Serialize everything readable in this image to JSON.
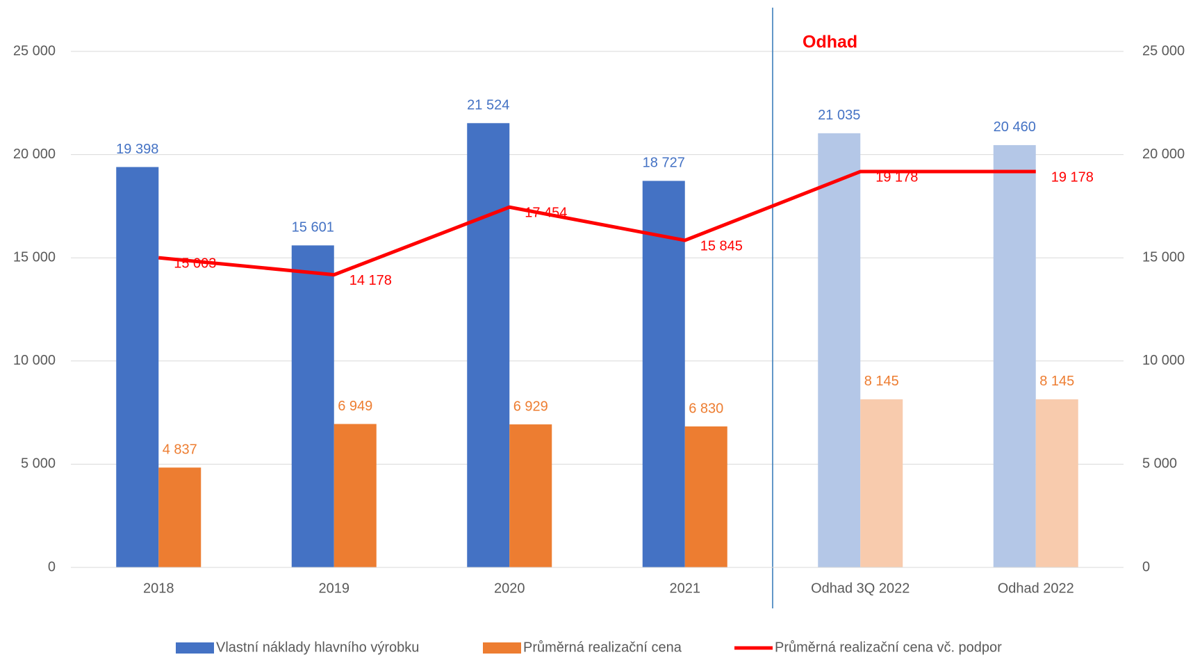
{
  "chart_data": {
    "type": "bar_line",
    "annotation": "Odhad",
    "categories": [
      "2018",
      "2019",
      "2020",
      "2021",
      "Odhad 3Q 2022",
      "Odhad 2022"
    ],
    "series": [
      {
        "name": "Vlastní náklady hlavního výrobku",
        "type": "bar",
        "color": "#4472c4",
        "colors": [
          "#4472c4",
          "#4472c4",
          "#4472c4",
          "#4472c4",
          "#b4c7e7",
          "#b4c7e7"
        ],
        "values": [
          19398,
          15601,
          21524,
          18727,
          21035,
          20460
        ],
        "value_labels": [
          "19 398",
          "15 601",
          "21 524",
          "18 727",
          "21 035",
          "20 460"
        ]
      },
      {
        "name": "Průměrná realizační cena",
        "type": "bar",
        "color": "#ed7d31",
        "colors": [
          "#ed7d31",
          "#ed7d31",
          "#ed7d31",
          "#ed7d31",
          "#f8cbad",
          "#f8cbad"
        ],
        "values": [
          4837,
          6949,
          6929,
          6830,
          8145,
          8145
        ],
        "value_labels": [
          "4 837",
          "6 949",
          "6 929",
          "6 830",
          "8 145",
          "8 145"
        ]
      },
      {
        "name": "Průměrná realizační cena vč. podpor",
        "type": "line",
        "color": "#ff0000",
        "values": [
          15003,
          14178,
          17454,
          15845,
          19178,
          19178
        ],
        "value_labels": [
          "15 003",
          "14 178",
          "17 454",
          "15 845",
          "19 178",
          "19 178"
        ]
      }
    ],
    "ylim": [
      0,
      25000
    ],
    "yticks": [
      0,
      {
        "value": 5000,
        "label": "5 000"
      },
      {
        "value": 10000,
        "label": "10 000"
      },
      {
        "value": 15000,
        "label": "15 000"
      },
      {
        "value": 20000,
        "label": "20 000"
      },
      {
        "value": 25000,
        "label": "25 000"
      }
    ],
    "y2lim": [
      0,
      25000
    ],
    "y2ticks": [
      0,
      {
        "value": 5000,
        "label": "5 000"
      },
      {
        "value": 10000,
        "label": "10 000"
      },
      {
        "value": 15000,
        "label": "15 000"
      },
      {
        "value": 20000,
        "label": "20 000"
      },
      {
        "value": 25000,
        "label": "25 000"
      }
    ],
    "grid": true,
    "legend": "bottom"
  }
}
